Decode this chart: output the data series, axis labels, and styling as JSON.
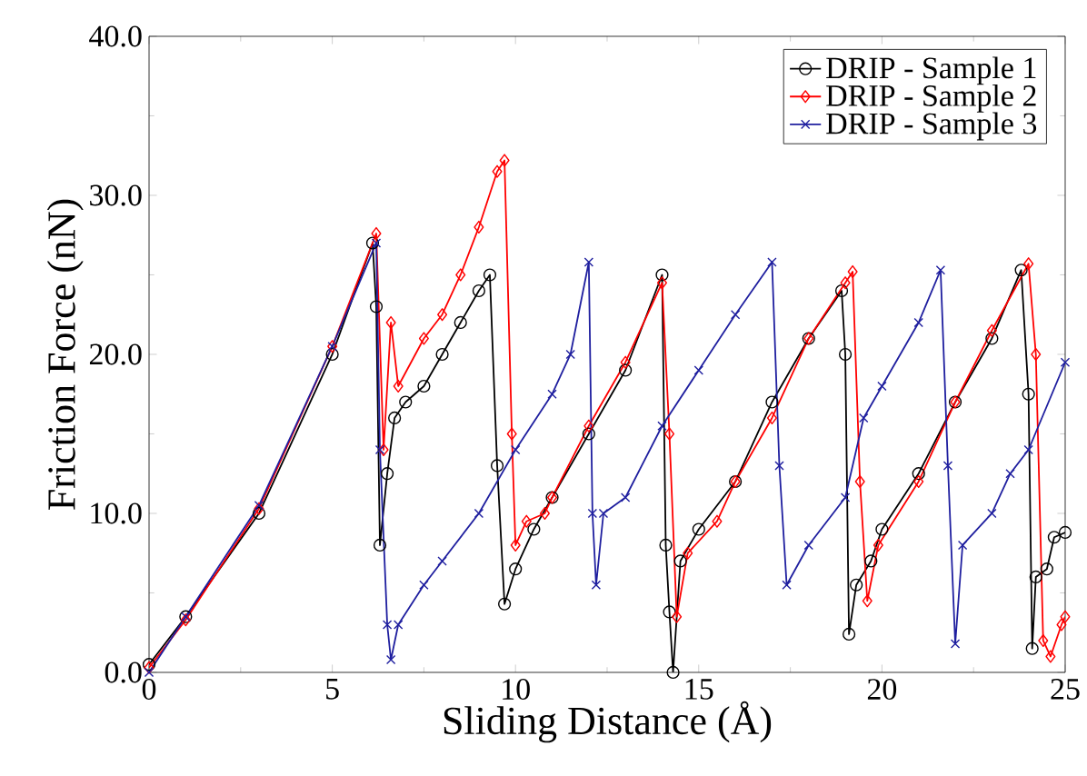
{
  "chart_data": {
    "type": "line",
    "xlabel": "Sliding Distance (Å)",
    "ylabel": "Friction Force (nN)",
    "xlim": [
      0,
      25
    ],
    "ylim": [
      0,
      40
    ],
    "xticks": [
      0,
      5,
      10,
      15,
      20,
      25
    ],
    "yticks": [
      {
        "value": 0,
        "label": "0.0"
      },
      {
        "value": 10,
        "label": "10.0"
      },
      {
        "value": 20,
        "label": "20.0"
      },
      {
        "value": 30,
        "label": "30.0"
      },
      {
        "value": 40,
        "label": "40.0"
      }
    ],
    "grid": false,
    "legend": "top right",
    "series": [
      {
        "name": "DRIP - Sample 1",
        "color": "#000000",
        "marker": "circle",
        "x": [
          0,
          1,
          3,
          5,
          6.1,
          6.2,
          6.3,
          6.5,
          6.7,
          7,
          7.5,
          8,
          8.5,
          9,
          9.3,
          9.5,
          9.7,
          10,
          10.5,
          11,
          12,
          13,
          14,
          14.1,
          14.2,
          14.3,
          14.5,
          15,
          16,
          17,
          18,
          18.9,
          19,
          19.1,
          19.3,
          19.7,
          20,
          21,
          22,
          23,
          23.8,
          24,
          24.1,
          24.2,
          24.5,
          24.7,
          25
        ],
        "values": [
          0.5,
          3.5,
          10,
          20,
          27,
          23,
          8,
          12.5,
          16,
          17,
          18,
          20,
          22,
          24,
          25,
          13,
          4.3,
          6.5,
          9,
          11,
          15,
          19,
          25,
          8,
          3.8,
          0,
          7,
          9,
          12,
          17,
          21,
          24,
          20,
          2.4,
          5.5,
          7,
          9,
          12.5,
          17,
          21,
          25.3,
          17.5,
          1.5,
          6,
          6.5,
          8.5,
          8.8
        ]
      },
      {
        "name": "DRIP - Sample 2",
        "color": "#ff0000",
        "marker": "diamond",
        "x": [
          0,
          1,
          3,
          5,
          6.2,
          6.4,
          6.6,
          6.8,
          7.5,
          8,
          8.5,
          9,
          9.5,
          9.7,
          9.9,
          10,
          10.3,
          10.8,
          11,
          12,
          13,
          14,
          14.2,
          14.4,
          14.7,
          15.5,
          16,
          17,
          18,
          19,
          19.2,
          19.4,
          19.6,
          19.9,
          21,
          22,
          23,
          24,
          24.2,
          24.4,
          24.6,
          24.9,
          25
        ],
        "values": [
          0.3,
          3.3,
          10.3,
          20.5,
          27.6,
          14,
          22,
          18,
          21,
          22.5,
          25,
          28,
          31.5,
          32.2,
          15,
          8,
          9.5,
          10,
          11,
          15.5,
          19.5,
          24.5,
          15,
          3.5,
          7.5,
          9.5,
          12,
          16,
          21,
          24.5,
          25.2,
          12,
          4.5,
          8,
          12,
          17,
          21.5,
          25.7,
          20,
          2,
          1,
          3,
          3.5
        ]
      },
      {
        "name": "DRIP - Sample 3",
        "color": "#1f1f9f",
        "marker": "cross",
        "x": [
          0,
          1,
          3,
          5,
          6.2,
          6.3,
          6.5,
          6.6,
          6.8,
          7.5,
          8,
          9,
          10,
          11,
          11.5,
          12,
          12.1,
          12.2,
          12.4,
          13,
          14,
          15,
          16,
          17,
          17.2,
          17.4,
          18,
          19,
          19.5,
          20,
          21,
          21.6,
          21.8,
          22,
          22.2,
          23,
          23.5,
          24,
          25
        ],
        "values": [
          0,
          3.5,
          10.5,
          20.5,
          27,
          14,
          3,
          0.8,
          3,
          5.5,
          7,
          10,
          14,
          17.5,
          20,
          25.8,
          10,
          5.5,
          10,
          11,
          15.5,
          19,
          22.5,
          25.8,
          13,
          5.5,
          8,
          11,
          16,
          18,
          22,
          25.3,
          13,
          1.8,
          8,
          10,
          12.5,
          14,
          19.5
        ]
      }
    ]
  }
}
